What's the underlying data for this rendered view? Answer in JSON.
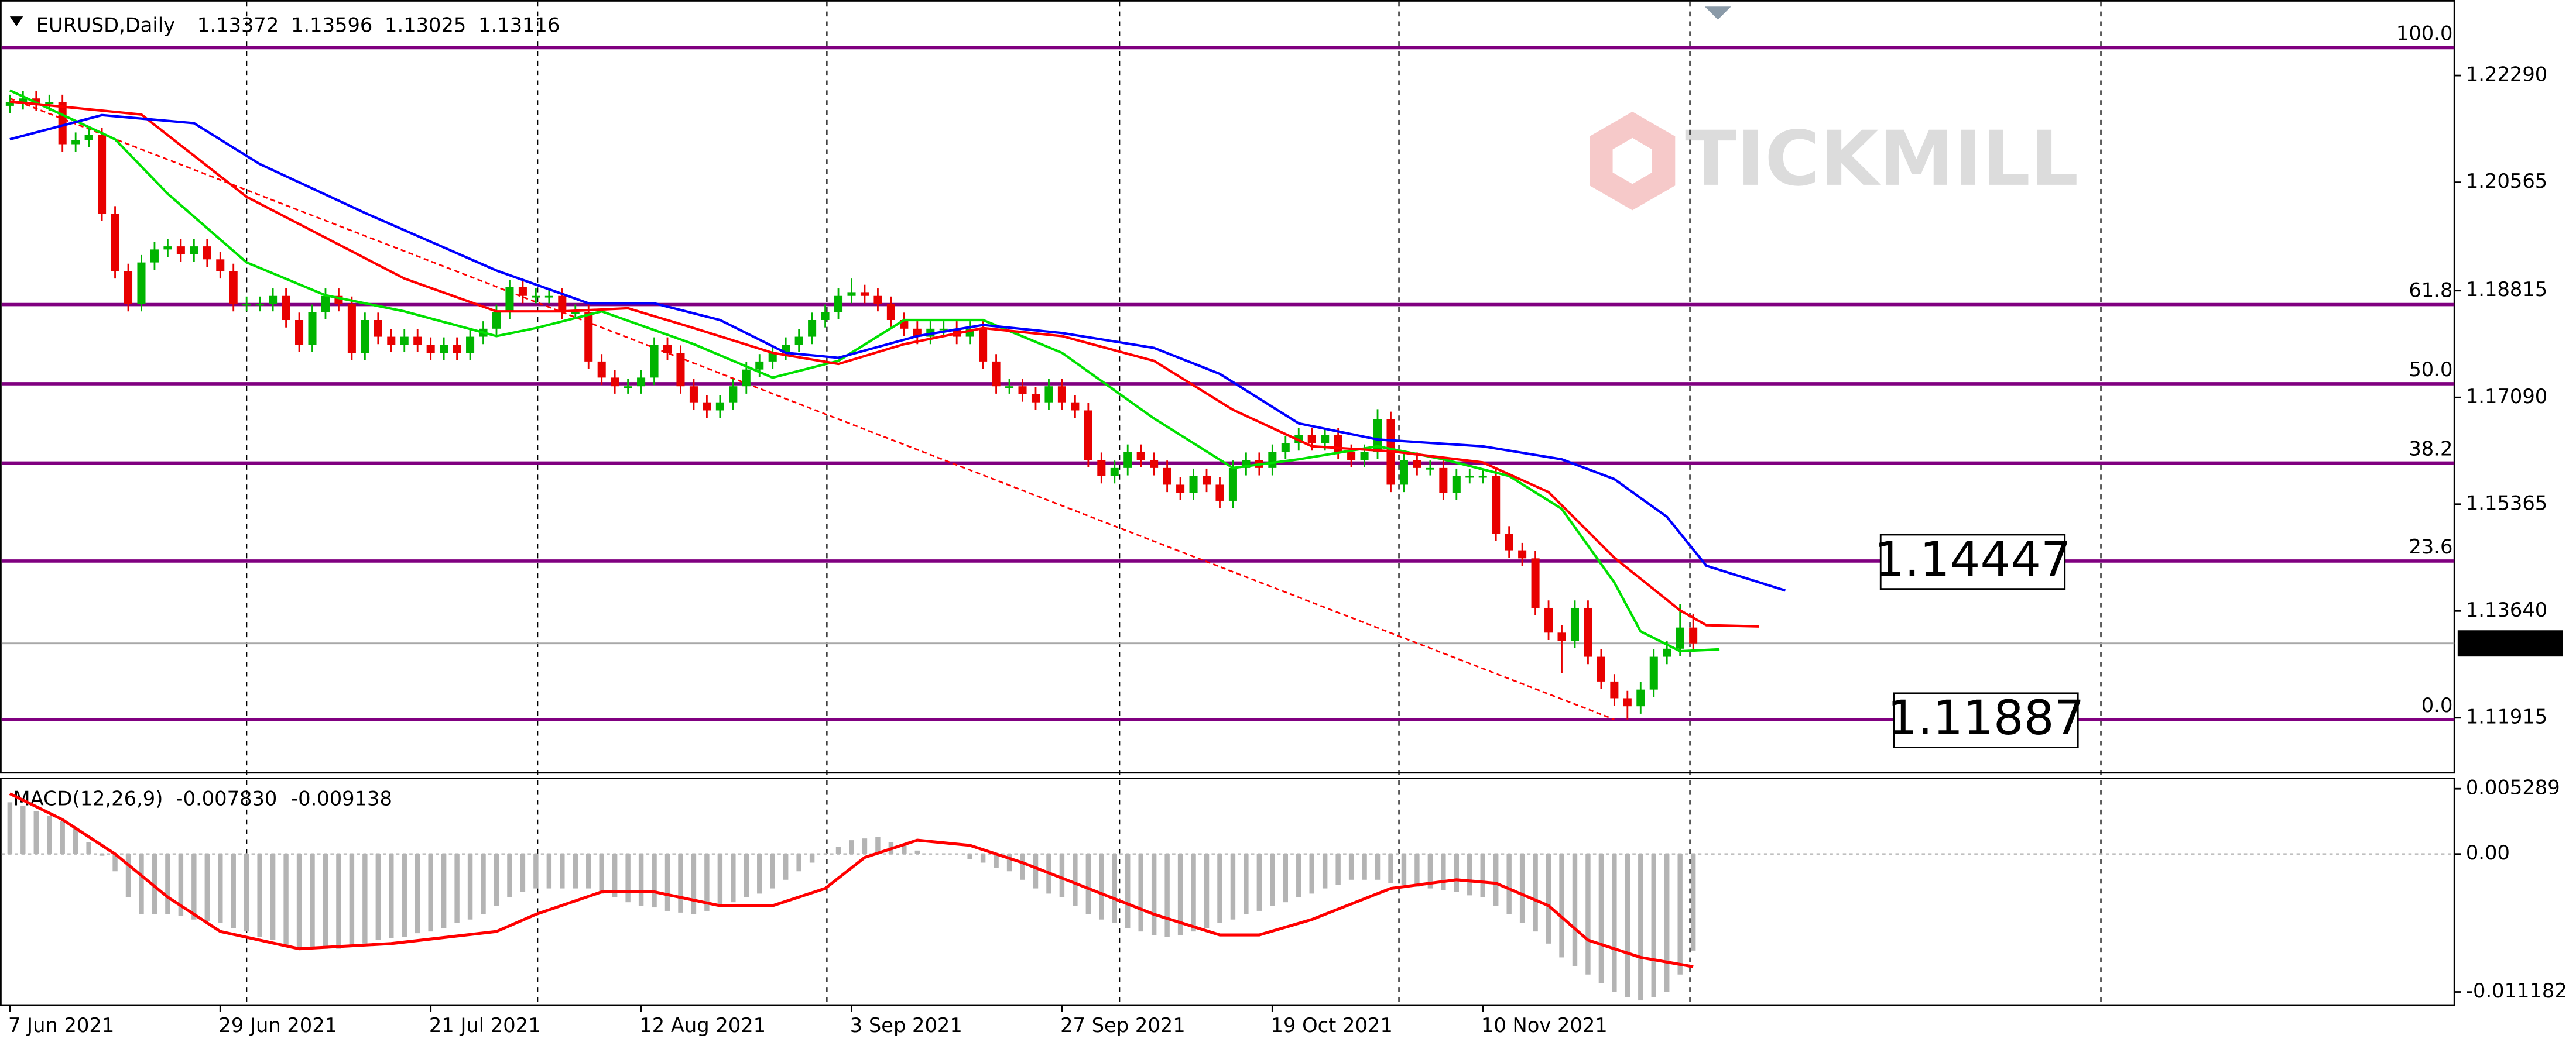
{
  "chart_data": [
    {
      "type": "candlestick",
      "symbol": "EURUSD,Daily",
      "watermark": "TICKMILL",
      "categories": [
        "7 Jun 2021",
        null,
        null,
        null,
        null,
        null,
        null,
        null,
        null,
        null,
        null,
        null,
        null,
        null,
        null,
        null,
        "29 Jun 2021",
        null,
        null,
        null,
        null,
        null,
        null,
        null,
        null,
        null,
        null,
        null,
        null,
        null,
        null,
        null,
        "21 Jul 2021",
        null,
        null,
        null,
        null,
        null,
        null,
        null,
        null,
        null,
        null,
        null,
        null,
        null,
        null,
        null,
        "12 Aug 2021",
        null,
        null,
        null,
        null,
        null,
        null,
        null,
        null,
        null,
        null,
        null,
        null,
        null,
        null,
        null,
        "3 Sep 2021",
        null,
        null,
        null,
        null,
        null,
        null,
        null,
        null,
        null,
        null,
        null,
        null,
        null,
        null,
        null,
        "27 Sep 2021",
        null,
        null,
        null,
        null,
        null,
        null,
        null,
        null,
        null,
        null,
        null,
        null,
        null,
        null,
        null,
        "19 Oct 2021",
        null,
        null,
        null,
        null,
        null,
        null,
        null,
        null,
        null,
        null,
        null,
        null,
        null,
        null,
        null,
        "10 Nov 2021",
        null,
        null,
        null,
        null,
        null,
        null,
        null,
        null,
        null,
        null,
        null,
        null,
        null,
        null,
        null,
        null
      ],
      "open": [
        1.218,
        1.2186,
        1.2192,
        1.2184,
        1.2186,
        1.2118,
        1.2125,
        1.2133,
        1.2006,
        1.1913,
        1.186,
        1.1927,
        1.1948,
        1.1953,
        1.194,
        1.1953,
        1.1932,
        1.1913,
        1.186,
        1.186,
        1.186,
        1.1873,
        1.1834,
        1.1794,
        1.1847,
        1.1873,
        1.186,
        1.1781,
        1.1834,
        1.1807,
        1.1794,
        1.1807,
        1.1794,
        1.1781,
        1.1794,
        1.1781,
        1.1807,
        1.182,
        1.1847,
        1.1887,
        1.1873,
        1.1873,
        1.1873,
        1.1847,
        1.1847,
        1.1767,
        1.1741,
        1.1727,
        1.1727,
        1.1741,
        1.1794,
        1.1781,
        1.1727,
        1.1701,
        1.1688,
        1.1701,
        1.1727,
        1.1754,
        1.1767,
        1.1781,
        1.1794,
        1.1807,
        1.1834,
        1.1847,
        1.1873,
        1.1879,
        1.1873,
        1.186,
        1.1834,
        1.182,
        1.1807,
        1.182,
        1.182,
        1.1807,
        1.182,
        1.1767,
        1.1727,
        1.1727,
        1.1714,
        1.1701,
        1.1727,
        1.1701,
        1.1688,
        1.1608,
        1.1582,
        1.1595,
        1.1621,
        1.1608,
        1.1595,
        1.1568,
        1.1555,
        1.1582,
        1.1568,
        1.1542,
        1.1595,
        1.1608,
        1.1595,
        1.1621,
        1.1635,
        1.1648,
        1.1635,
        1.1648,
        1.1621,
        1.1608,
        1.1621,
        1.1674,
        1.1568,
        1.1608,
        1.1595,
        1.1595,
        1.1555,
        1.1582,
        1.1582,
        1.1582,
        1.1489,
        1.1462,
        1.1449,
        1.1369,
        1.1329,
        1.1316,
        1.1369,
        1.129,
        1.125,
        1.1223,
        1.121,
        1.1237,
        1.129,
        1.1303,
        1.13372
      ],
      "high": [
        1.2198,
        1.2204,
        1.2204,
        1.2198,
        1.2198,
        1.2137,
        1.2145,
        1.2145,
        1.2018,
        1.1925,
        1.1939,
        1.196,
        1.1965,
        1.1965,
        1.1965,
        1.1965,
        1.1944,
        1.1925,
        1.1872,
        1.1872,
        1.1885,
        1.1885,
        1.1846,
        1.1859,
        1.1885,
        1.1885,
        1.1872,
        1.1846,
        1.1846,
        1.1819,
        1.1819,
        1.1819,
        1.1806,
        1.1806,
        1.1806,
        1.1819,
        1.1832,
        1.1859,
        1.1899,
        1.1899,
        1.1885,
        1.1885,
        1.1885,
        1.1859,
        1.1859,
        1.1779,
        1.1753,
        1.1739,
        1.1753,
        1.1806,
        1.1806,
        1.1793,
        1.1739,
        1.1713,
        1.1713,
        1.1739,
        1.1766,
        1.1779,
        1.1793,
        1.1806,
        1.1819,
        1.1846,
        1.1859,
        1.1885,
        1.1901,
        1.1891,
        1.1885,
        1.1872,
        1.1846,
        1.1832,
        1.1832,
        1.1832,
        1.1832,
        1.1832,
        1.1832,
        1.1779,
        1.1739,
        1.1739,
        1.1726,
        1.1739,
        1.1739,
        1.1713,
        1.17,
        1.162,
        1.1607,
        1.1633,
        1.1633,
        1.162,
        1.1607,
        1.158,
        1.1594,
        1.1594,
        1.158,
        1.1607,
        1.162,
        1.162,
        1.1633,
        1.1647,
        1.166,
        1.166,
        1.166,
        1.166,
        1.1633,
        1.1633,
        1.169,
        1.1686,
        1.162,
        1.162,
        1.1607,
        1.1607,
        1.1594,
        1.1594,
        1.1594,
        1.1594,
        1.1501,
        1.1474,
        1.1461,
        1.1381,
        1.1341,
        1.1381,
        1.1381,
        1.1302,
        1.1262,
        1.1235,
        1.1249,
        1.1302,
        1.1315,
        1.1375,
        1.13596
      ],
      "low": [
        1.2168,
        1.2174,
        1.2172,
        1.2172,
        1.2106,
        1.2106,
        1.2113,
        1.1994,
        1.1901,
        1.1848,
        1.1848,
        1.1915,
        1.1936,
        1.1928,
        1.1928,
        1.192,
        1.1901,
        1.1848,
        1.1848,
        1.1848,
        1.1848,
        1.1822,
        1.1782,
        1.1782,
        1.1835,
        1.1848,
        1.1769,
        1.1769,
        1.1795,
        1.1782,
        1.1782,
        1.1782,
        1.1769,
        1.1769,
        1.1769,
        1.1769,
        1.1795,
        1.1808,
        1.1835,
        1.1861,
        1.1861,
        1.1861,
        1.1835,
        1.1835,
        1.1755,
        1.1729,
        1.1715,
        1.1715,
        1.1715,
        1.1729,
        1.1769,
        1.1715,
        1.1689,
        1.1676,
        1.1676,
        1.1689,
        1.1715,
        1.1742,
        1.1755,
        1.1769,
        1.1782,
        1.1795,
        1.1822,
        1.1835,
        1.1861,
        1.1861,
        1.1848,
        1.1822,
        1.1808,
        1.1795,
        1.1795,
        1.1808,
        1.1795,
        1.1795,
        1.1755,
        1.1715,
        1.1715,
        1.1702,
        1.1689,
        1.1689,
        1.1689,
        1.1676,
        1.1596,
        1.157,
        1.157,
        1.1583,
        1.1596,
        1.1583,
        1.1556,
        1.1543,
        1.1543,
        1.1556,
        1.153,
        1.153,
        1.1583,
        1.1583,
        1.1583,
        1.1609,
        1.1623,
        1.1623,
        1.1623,
        1.1609,
        1.1596,
        1.1596,
        1.1609,
        1.1556,
        1.1556,
        1.1583,
        1.1583,
        1.1543,
        1.1543,
        1.157,
        1.157,
        1.1477,
        1.145,
        1.1437,
        1.1357,
        1.1317,
        1.1264,
        1.1304,
        1.1278,
        1.1238,
        1.1211,
        1.11887,
        1.1198,
        1.1225,
        1.1278,
        1.1291,
        1.13025
      ],
      "close": [
        1.2186,
        1.2192,
        1.2184,
        1.2186,
        1.2118,
        1.2125,
        1.2133,
        1.2006,
        1.1913,
        1.186,
        1.1927,
        1.1948,
        1.1953,
        1.194,
        1.1953,
        1.1932,
        1.1913,
        1.186,
        1.186,
        1.186,
        1.1873,
        1.1834,
        1.1794,
        1.1847,
        1.1873,
        1.186,
        1.1781,
        1.1834,
        1.1807,
        1.1794,
        1.1807,
        1.1794,
        1.1781,
        1.1794,
        1.1781,
        1.1807,
        1.182,
        1.1847,
        1.1887,
        1.1873,
        1.1873,
        1.1873,
        1.1847,
        1.1847,
        1.1767,
        1.1741,
        1.1727,
        1.1727,
        1.1741,
        1.1794,
        1.1781,
        1.1727,
        1.1701,
        1.1688,
        1.1701,
        1.1727,
        1.1754,
        1.1767,
        1.1781,
        1.1794,
        1.1807,
        1.1834,
        1.1847,
        1.1873,
        1.1879,
        1.1873,
        1.186,
        1.1834,
        1.182,
        1.1807,
        1.182,
        1.182,
        1.1807,
        1.182,
        1.1767,
        1.1727,
        1.1727,
        1.1714,
        1.1701,
        1.1727,
        1.1701,
        1.1688,
        1.1608,
        1.1582,
        1.1595,
        1.1621,
        1.1608,
        1.1595,
        1.1568,
        1.1555,
        1.1582,
        1.1568,
        1.1542,
        1.1595,
        1.1608,
        1.1595,
        1.1621,
        1.1635,
        1.1648,
        1.1635,
        1.1648,
        1.1621,
        1.1608,
        1.1621,
        1.1674,
        1.1568,
        1.1608,
        1.1595,
        1.1595,
        1.1555,
        1.1582,
        1.1582,
        1.1582,
        1.1489,
        1.1462,
        1.1449,
        1.1369,
        1.1329,
        1.1316,
        1.1369,
        1.129,
        1.125,
        1.1223,
        1.121,
        1.1237,
        1.129,
        1.1303,
        1.13372,
        1.13116
      ],
      "up_color": "#00b400",
      "down_color": "#e80000",
      "ylim": [
        1.1104,
        1.2351
      ],
      "yticks": [
        {
          "value": 1.2229,
          "label": "1.22290"
        },
        {
          "value": 1.20565,
          "label": "1.20565"
        },
        {
          "value": 1.18815,
          "label": "1.18815"
        },
        {
          "value": 1.1709,
          "label": "1.17090"
        },
        {
          "value": 1.15365,
          "label": "1.15365"
        },
        {
          "value": 1.1364,
          "label": "1.13640"
        },
        {
          "value": 1.11915,
          "label": "1.11915"
        }
      ],
      "moving_averages": [
        {
          "color": "#00e000",
          "x": [
            0,
            8,
            12,
            18,
            24,
            30,
            37,
            40,
            45,
            52,
            58,
            63,
            68,
            74,
            80,
            87,
            93,
            98,
            104,
            109,
            114,
            118,
            122,
            124,
            127,
            130
          ],
          "values": [
            1.2205,
            1.2126,
            1.2038,
            1.1927,
            1.1874,
            1.1848,
            1.1808,
            1.1821,
            1.1848,
            1.1795,
            1.1741,
            1.1768,
            1.1834,
            1.1834,
            1.1781,
            1.1675,
            1.1595,
            1.1609,
            1.163,
            1.1609,
            1.1582,
            1.1529,
            1.141,
            1.1331,
            1.1299,
            1.1302
          ]
        },
        {
          "color": "#ff0000",
          "x": [
            0,
            10,
            18,
            24,
            30,
            37,
            42,
            47,
            52,
            58,
            63,
            68,
            74,
            80,
            87,
            93,
            99,
            105,
            112,
            117,
            122,
            127,
            129,
            133
          ],
          "values": [
            1.2187,
            1.2166,
            1.2033,
            1.1967,
            1.1901,
            1.1848,
            1.1848,
            1.1853,
            1.1821,
            1.1781,
            1.1763,
            1.1795,
            1.1821,
            1.1808,
            1.1768,
            1.1689,
            1.163,
            1.1622,
            1.1604,
            1.1556,
            1.145,
            1.1365,
            1.1341,
            1.1339
          ]
        },
        {
          "color": "#0000ff",
          "x": [
            0,
            7,
            14,
            19,
            27,
            37,
            44,
            49,
            54,
            59,
            63,
            69,
            74,
            80,
            87,
            92,
            98,
            104,
            112,
            118,
            122,
            126,
            129,
            135
          ],
          "values": [
            1.2126,
            1.2165,
            1.2152,
            1.2086,
            1.2007,
            1.1914,
            1.1861,
            1.1861,
            1.1834,
            1.1781,
            1.1773,
            1.1808,
            1.1826,
            1.1813,
            1.1789,
            1.1747,
            1.1667,
            1.1641,
            1.163,
            1.1609,
            1.1577,
            1.1516,
            1.1437,
            1.1397
          ]
        }
      ],
      "trendline": {
        "color": "#ff0000",
        "x": [
          0,
          122
        ],
        "values": [
          1.2192,
          1.11887
        ]
      },
      "fib_color": "#800080",
      "fib_levels": [
        {
          "label": "100.0",
          "value": 1.2274
        },
        {
          "label": "61.8",
          "value": 1.1859
        },
        {
          "label": "50.0",
          "value": 1.1731
        },
        {
          "label": "38.2",
          "value": 1.1603
        },
        {
          "label": "23.6",
          "value": 1.14447,
          "boxed": true
        },
        {
          "label": "0.0",
          "value": 1.11887,
          "boxed": true
        }
      ]
    },
    {
      "type": "macd",
      "title": "MACD(12,26,9)",
      "readout": [
        {
          "value": -0.00783,
          "label": "-0.007830"
        },
        {
          "value": -0.009138,
          "label": "-0.009138"
        }
      ],
      "histogram_color": "#b4b4b4",
      "values": [
        0.00419,
        0.00391,
        0.00349,
        0.00307,
        0.00265,
        0.00209,
        0.00098,
        -0.00014,
        -0.0014,
        -0.00349,
        -0.00489,
        -0.00489,
        -0.00489,
        -0.00503,
        -0.00531,
        -0.00544,
        -0.00558,
        -0.006,
        -0.00628,
        -0.0067,
        -0.00698,
        -0.0074,
        -0.00768,
        -0.00768,
        -0.00768,
        -0.00768,
        -0.0074,
        -0.00726,
        -0.00698,
        -0.00684,
        -0.0067,
        -0.00642,
        -0.00628,
        -0.006,
        -0.00558,
        -0.00531,
        -0.00489,
        -0.00419,
        -0.00349,
        -0.00307,
        -0.00279,
        -0.00279,
        -0.00279,
        -0.00279,
        -0.00279,
        -0.00321,
        -0.00349,
        -0.00391,
        -0.00419,
        -0.00433,
        -0.00461,
        -0.00475,
        -0.00489,
        -0.00461,
        -0.00419,
        -0.00391,
        -0.00349,
        -0.00321,
        -0.00279,
        -0.00209,
        -0.0014,
        -0.0007,
        0,
        0.00056,
        0.00112,
        0.00126,
        0.0014,
        0.00098,
        0.0007,
        0.00028,
        0,
        0,
        0,
        -0.00042,
        -0.0007,
        -0.00112,
        -0.0014,
        -0.00209,
        -0.00279,
        -0.00321,
        -0.00349,
        -0.00419,
        -0.00489,
        -0.00531,
        -0.00558,
        -0.006,
        -0.00628,
        -0.00656,
        -0.0067,
        -0.00656,
        -0.00628,
        -0.006,
        -0.00558,
        -0.00531,
        -0.00489,
        -0.00461,
        -0.00419,
        -0.00391,
        -0.00349,
        -0.00321,
        -0.00279,
        -0.00251,
        -0.00209,
        -0.00209,
        -0.00209,
        -0.00237,
        -0.00251,
        -0.00265,
        -0.00279,
        -0.00293,
        -0.00307,
        -0.00335,
        -0.00349,
        -0.00419,
        -0.00489,
        -0.00558,
        -0.00628,
        -0.00726,
        -0.00838,
        -0.00907,
        -0.00977,
        -0.01047,
        -0.01117,
        -0.01159,
        -0.01187,
        -0.01159,
        -0.01117,
        -0.00977,
        -0.00783
      ],
      "signal": {
        "color": "#ff0000",
        "x": [
          0,
          4,
          8,
          12,
          16,
          22,
          29,
          37,
          40,
          45,
          49,
          54,
          58,
          62,
          65,
          69,
          73,
          77,
          82,
          87,
          92,
          95,
          99,
          105,
          110,
          113,
          117,
          120,
          124,
          128
        ],
        "values": [
          0.00489,
          0.00279,
          0,
          -0.00349,
          -0.00628,
          -0.00768,
          -0.00726,
          -0.00628,
          -0.00489,
          -0.00307,
          -0.00307,
          -0.00419,
          -0.00419,
          -0.00279,
          -0.00028,
          0.00112,
          0.0007,
          -0.0007,
          -0.00279,
          -0.00489,
          -0.00656,
          -0.00656,
          -0.00531,
          -0.00279,
          -0.00209,
          -0.00237,
          -0.00419,
          -0.00698,
          -0.00838,
          -0.009138
        ]
      },
      "ylim": [
        -0.012247,
        0.006124
      ],
      "yticks": [
        0.005289,
        {
          "value": 0,
          "label": "0.00"
        },
        -0.011182
      ]
    }
  ]
}
